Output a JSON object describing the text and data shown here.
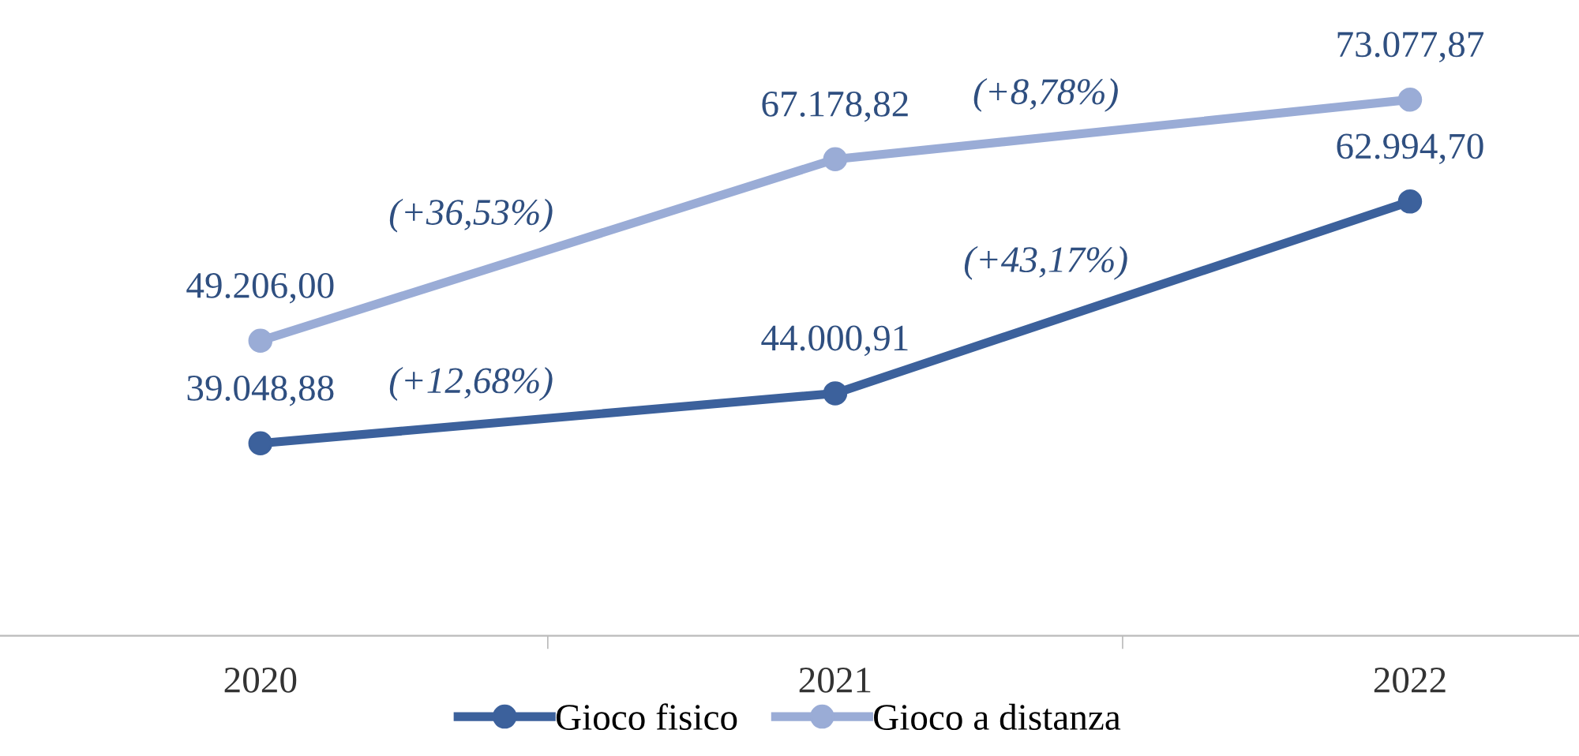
{
  "chart_data": {
    "type": "line",
    "categories": [
      "2020",
      "2021",
      "2022"
    ],
    "series": [
      {
        "name": "Gioco fisico",
        "color": "#3c619c",
        "values": [
          39048.88,
          44000.91,
          62994.7
        ],
        "value_labels": [
          "39.048,88",
          "44.000,91",
          "62.994,70"
        ]
      },
      {
        "name": "Gioco a distanza",
        "color": "#9aacd6",
        "values": [
          49206.0,
          67178.82,
          73077.87
        ],
        "value_labels": [
          "49.206,00",
          "67.178,82",
          "73.077,87"
        ]
      }
    ],
    "annotations": [
      "(+12,68%)",
      "(+43,17%)",
      "(+36,53%)",
      "(+8,78%)"
    ],
    "marker": "circle",
    "line_style": "solid",
    "grid": false,
    "legend": "bottom"
  }
}
